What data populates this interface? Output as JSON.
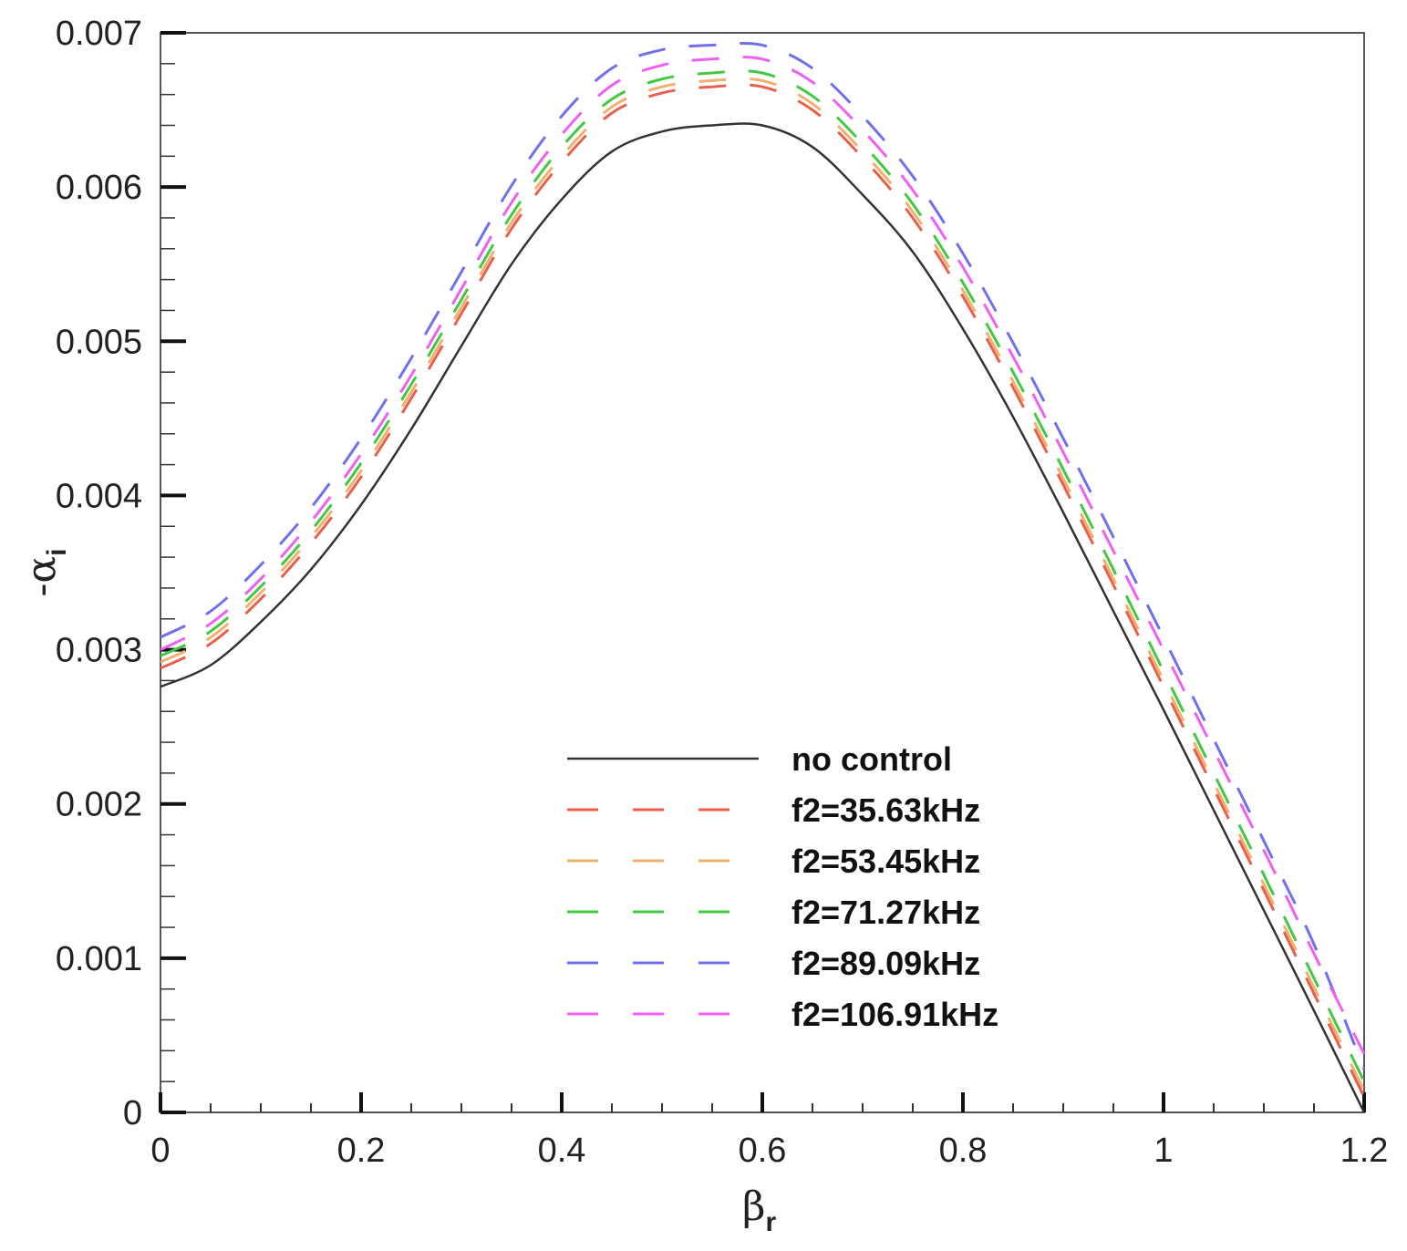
{
  "chart_data": {
    "type": "line",
    "title": "",
    "xlabel": {
      "main": "β",
      "sub": "r"
    },
    "ylabel": {
      "main": "-α",
      "sub": "i"
    },
    "xlim": [
      0,
      1.2
    ],
    "ylim": [
      0,
      0.007
    ],
    "x_ticks": [
      0,
      0.2,
      0.4,
      0.6,
      0.8,
      1,
      1.2
    ],
    "x_tick_labels": [
      "0",
      "0.2",
      "0.4",
      "0.6",
      "0.8",
      "1",
      "1.2"
    ],
    "y_ticks": [
      0,
      0.001,
      0.002,
      0.003,
      0.004,
      0.005,
      0.006,
      0.007
    ],
    "y_tick_labels": [
      "0",
      "0.001",
      "0.002",
      "0.003",
      "0.004",
      "0.005",
      "0.006",
      "0.007"
    ],
    "x_minor_step": 0.05,
    "y_minor_step": 0.0002,
    "grid": false,
    "legend_position": "lower-center",
    "series": [
      {
        "name": "no control",
        "color": "#333333",
        "dash": "solid",
        "x": [
          0,
          0.05,
          0.1,
          0.15,
          0.2,
          0.25,
          0.3,
          0.35,
          0.4,
          0.45,
          0.5,
          0.55,
          0.6,
          0.65,
          0.7,
          0.75,
          0.8,
          0.85,
          0.9,
          0.95,
          1.0,
          1.05,
          1.1,
          1.15,
          1.2
        ],
        "y": [
          0.00276,
          0.0029,
          0.00318,
          0.00352,
          0.00394,
          0.00443,
          0.00497,
          0.0055,
          0.00592,
          0.00623,
          0.00636,
          0.0064,
          0.0064,
          0.00626,
          0.00595,
          0.00558,
          0.00508,
          0.00451,
          0.00389,
          0.00325,
          0.00261,
          0.00196,
          0.00131,
          0.00066,
          0.0
        ]
      },
      {
        "name": "f2=35.63kHz",
        "color": "#e8604c",
        "dash": "dashed",
        "x": [
          0,
          0.05,
          0.1,
          0.15,
          0.2,
          0.25,
          0.3,
          0.35,
          0.4,
          0.45,
          0.5,
          0.55,
          0.6,
          0.65,
          0.7,
          0.75,
          0.8,
          0.85,
          0.9,
          0.95,
          1.0,
          1.05,
          1.1,
          1.15,
          1.2
        ],
        "y": [
          0.00288,
          0.00304,
          0.00333,
          0.00369,
          0.00412,
          0.00463,
          0.00518,
          0.00573,
          0.00616,
          0.00648,
          0.00661,
          0.00665,
          0.00665,
          0.0065,
          0.00619,
          0.0058,
          0.00529,
          0.0047,
          0.00407,
          0.00342,
          0.00276,
          0.0021,
          0.00144,
          0.00077,
          0.0001
        ]
      },
      {
        "name": "f2=53.45kHz",
        "color": "#f0b070",
        "dash": "dashed",
        "x": [
          0,
          0.05,
          0.1,
          0.15,
          0.2,
          0.25,
          0.3,
          0.35,
          0.4,
          0.45,
          0.5,
          0.55,
          0.6,
          0.65,
          0.7,
          0.75,
          0.8,
          0.85,
          0.9,
          0.95,
          1.0,
          1.05,
          1.1,
          1.15,
          1.2
        ],
        "y": [
          0.00292,
          0.00308,
          0.00337,
          0.00373,
          0.00416,
          0.00467,
          0.00522,
          0.00577,
          0.0062,
          0.00652,
          0.00665,
          0.00669,
          0.00669,
          0.00654,
          0.00623,
          0.00584,
          0.00533,
          0.00474,
          0.00411,
          0.00346,
          0.0028,
          0.00214,
          0.00148,
          0.00081,
          0.00014
        ]
      },
      {
        "name": "f2=71.27kHz",
        "color": "#44c844",
        "dash": "dashed",
        "x": [
          0,
          0.05,
          0.1,
          0.15,
          0.2,
          0.25,
          0.3,
          0.35,
          0.4,
          0.45,
          0.5,
          0.55,
          0.6,
          0.65,
          0.7,
          0.75,
          0.8,
          0.85,
          0.9,
          0.95,
          1.0,
          1.05,
          1.1,
          1.15,
          1.2
        ],
        "y": [
          0.00296,
          0.00312,
          0.00341,
          0.00377,
          0.00421,
          0.00472,
          0.00527,
          0.00582,
          0.00626,
          0.00657,
          0.0067,
          0.00674,
          0.00674,
          0.00659,
          0.00628,
          0.00589,
          0.00538,
          0.0048,
          0.00417,
          0.00352,
          0.00286,
          0.0022,
          0.00154,
          0.00087,
          0.0002
        ]
      },
      {
        "name": "f2=89.09kHz",
        "color": "#6f6ff0",
        "dash": "dashed",
        "x": [
          0,
          0.05,
          0.1,
          0.15,
          0.2,
          0.25,
          0.3,
          0.35,
          0.4,
          0.45,
          0.5,
          0.55,
          0.6,
          0.65,
          0.7,
          0.75,
          0.8,
          0.85,
          0.9,
          0.95,
          1.0,
          1.05,
          1.1,
          1.15,
          1.2
        ],
        "y": [
          0.00308,
          0.00325,
          0.00355,
          0.00392,
          0.00437,
          0.00489,
          0.00545,
          0.00601,
          0.00646,
          0.00677,
          0.00689,
          0.00692,
          0.00692,
          0.00677,
          0.00646,
          0.00607,
          0.00557,
          0.00499,
          0.00437,
          0.00373,
          0.00308,
          0.00242,
          0.00176,
          0.00109,
          0.00028
        ]
      },
      {
        "name": "f2=106.91kHz",
        "color": "#f060f0",
        "dash": "dashed",
        "x": [
          0,
          0.05,
          0.1,
          0.15,
          0.2,
          0.25,
          0.3,
          0.35,
          0.4,
          0.45,
          0.5,
          0.55,
          0.6,
          0.65,
          0.7,
          0.75,
          0.8,
          0.85,
          0.9,
          0.95,
          1.0,
          1.05,
          1.1,
          1.15,
          1.2
        ],
        "y": [
          0.003,
          0.00317,
          0.00346,
          0.00383,
          0.00427,
          0.00478,
          0.00534,
          0.0059,
          0.00634,
          0.00666,
          0.00679,
          0.00683,
          0.00683,
          0.00668,
          0.00637,
          0.00598,
          0.00548,
          0.0049,
          0.00428,
          0.00364,
          0.003,
          0.00235,
          0.0017,
          0.00103,
          0.00038
        ]
      }
    ]
  }
}
